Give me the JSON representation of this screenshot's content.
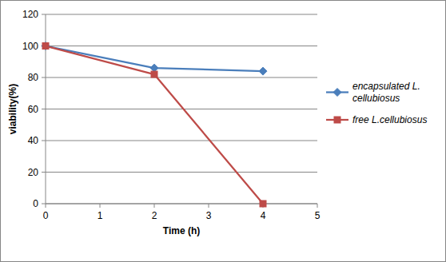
{
  "chart_data": {
    "type": "line",
    "x_label": "Time (h)",
    "y_label": "viability(%)",
    "x": [
      0,
      2,
      4
    ],
    "series": [
      {
        "name": "encapsulated L. cellubiosus",
        "color": "#4a7ebb",
        "marker": "diamond",
        "values": [
          100,
          86,
          84
        ]
      },
      {
        "name": "free L.cellubiosus",
        "color": "#be4b48",
        "marker": "square",
        "values": [
          100,
          82,
          0
        ]
      }
    ],
    "xlim": [
      0,
      5
    ],
    "xticks": [
      0,
      1,
      2,
      3,
      4,
      5
    ],
    "ylim": [
      0,
      120
    ],
    "yticks": [
      0,
      20,
      40,
      60,
      80,
      100,
      120
    ],
    "grid": true,
    "legend": "right"
  }
}
